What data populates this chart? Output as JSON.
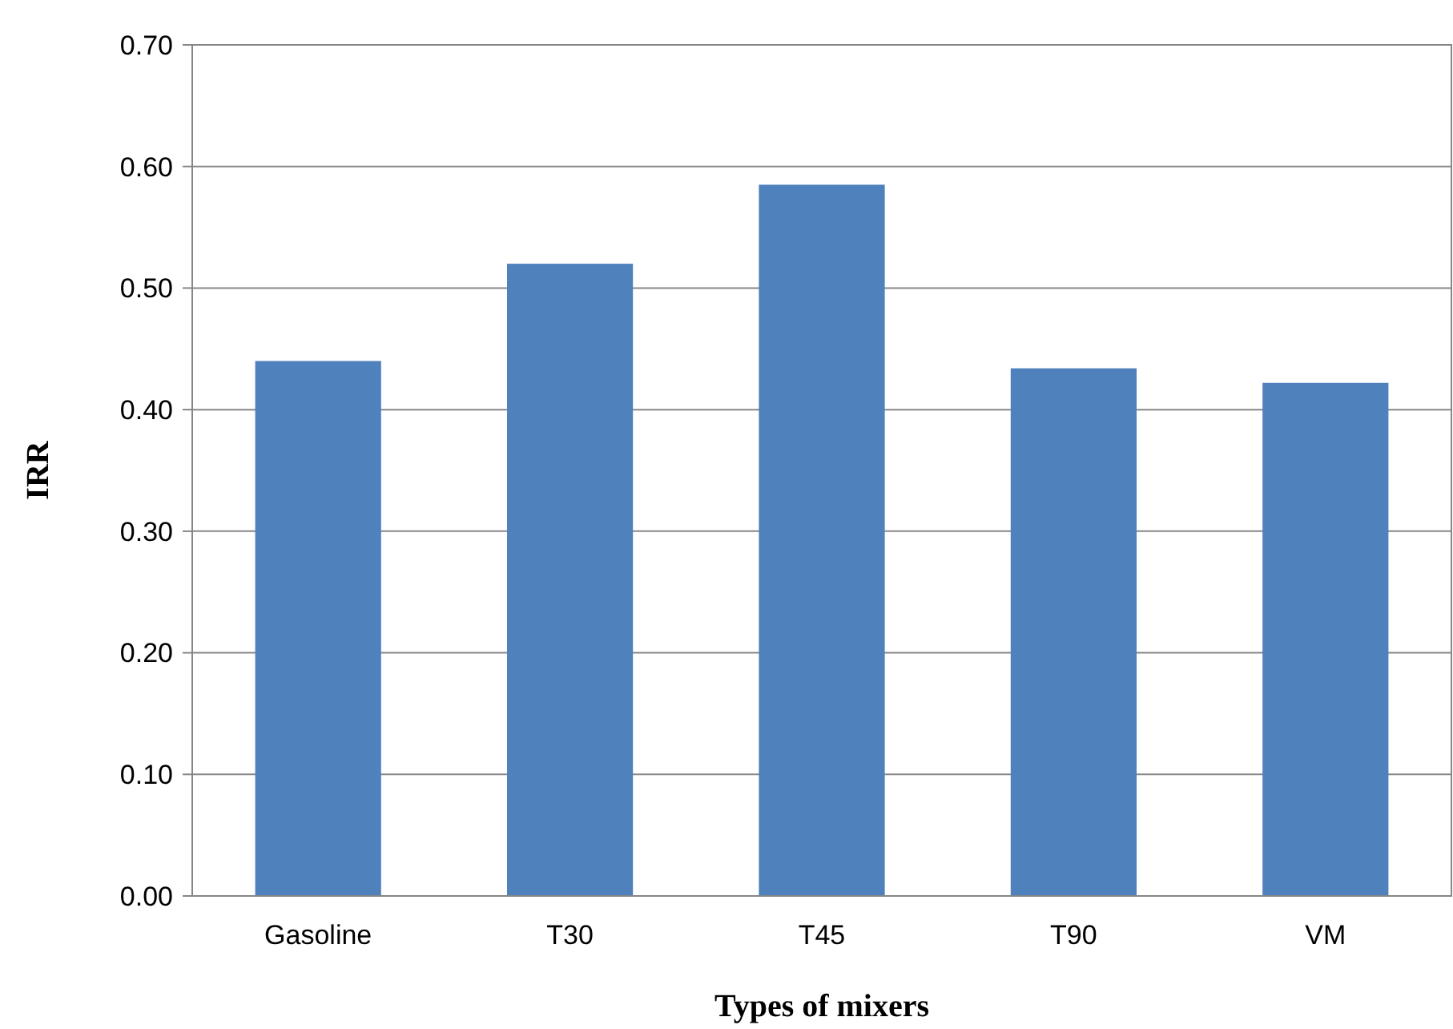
{
  "chart_data": {
    "type": "bar",
    "xlabel": "Types of mixers",
    "ylabel": "IRR",
    "categories": [
      "Gasoline",
      "T30",
      "T45",
      "T90",
      "VM"
    ],
    "values": [
      0.44,
      0.52,
      0.585,
      0.434,
      0.422
    ],
    "color": "#4f81bd",
    "ylim": [
      0,
      0.7
    ],
    "yticks": [
      {
        "value": 0,
        "label": "0.00"
      },
      {
        "value": 0.1,
        "label": "0.10"
      },
      {
        "value": 0.2,
        "label": "0.20"
      },
      {
        "value": 0.3,
        "label": "0.30"
      },
      {
        "value": 0.4,
        "label": "0.40"
      },
      {
        "value": 0.5,
        "label": "0.50"
      },
      {
        "value": 0.6,
        "label": "0.60"
      },
      {
        "value": 0.7,
        "label": "0.70"
      }
    ],
    "grid": "y"
  }
}
